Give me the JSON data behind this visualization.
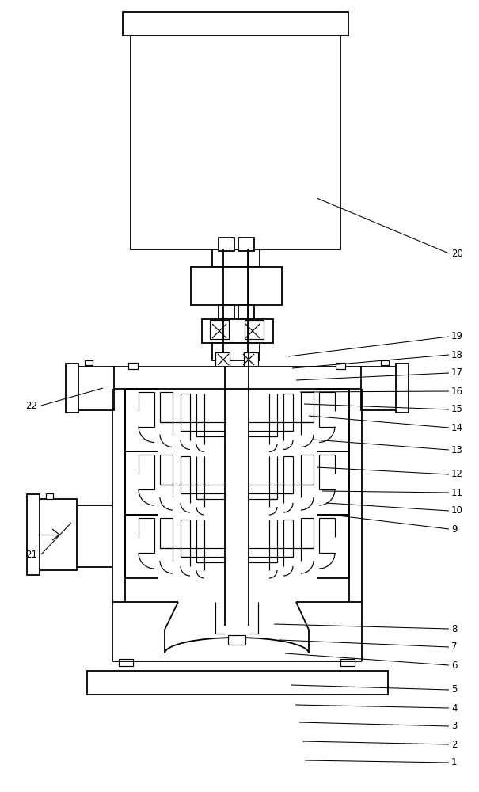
{
  "bg": "#ffffff",
  "lc": "#000000",
  "lw": 1.3,
  "lwt": 0.85,
  "fig_w": 6.05,
  "fig_h": 10.0,
  "callouts_right": [
    [
      "1",
      570,
      963,
      385,
      960
    ],
    [
      "2",
      570,
      940,
      382,
      936
    ],
    [
      "3",
      570,
      917,
      378,
      912
    ],
    [
      "4",
      570,
      894,
      373,
      890
    ],
    [
      "5",
      570,
      871,
      368,
      865
    ],
    [
      "6",
      570,
      840,
      360,
      825
    ],
    [
      "7",
      570,
      817,
      353,
      808
    ],
    [
      "8",
      570,
      794,
      346,
      788
    ],
    [
      "9",
      570,
      668,
      418,
      650
    ],
    [
      "10",
      570,
      645,
      412,
      635
    ],
    [
      "11",
      570,
      622,
      407,
      620
    ],
    [
      "12",
      570,
      599,
      400,
      590
    ],
    [
      "13",
      570,
      568,
      395,
      555
    ],
    [
      "14",
      570,
      540,
      390,
      525
    ],
    [
      "15",
      570,
      517,
      384,
      510
    ],
    [
      "16",
      570,
      494,
      379,
      495
    ],
    [
      "17",
      570,
      471,
      374,
      480
    ],
    [
      "18",
      570,
      448,
      369,
      465
    ],
    [
      "19",
      570,
      425,
      364,
      450
    ],
    [
      "20",
      570,
      320,
      400,
      250
    ]
  ],
  "callouts_left": [
    [
      "21",
      32,
      700,
      90,
      660
    ],
    [
      "22",
      32,
      512,
      130,
      490
    ]
  ]
}
